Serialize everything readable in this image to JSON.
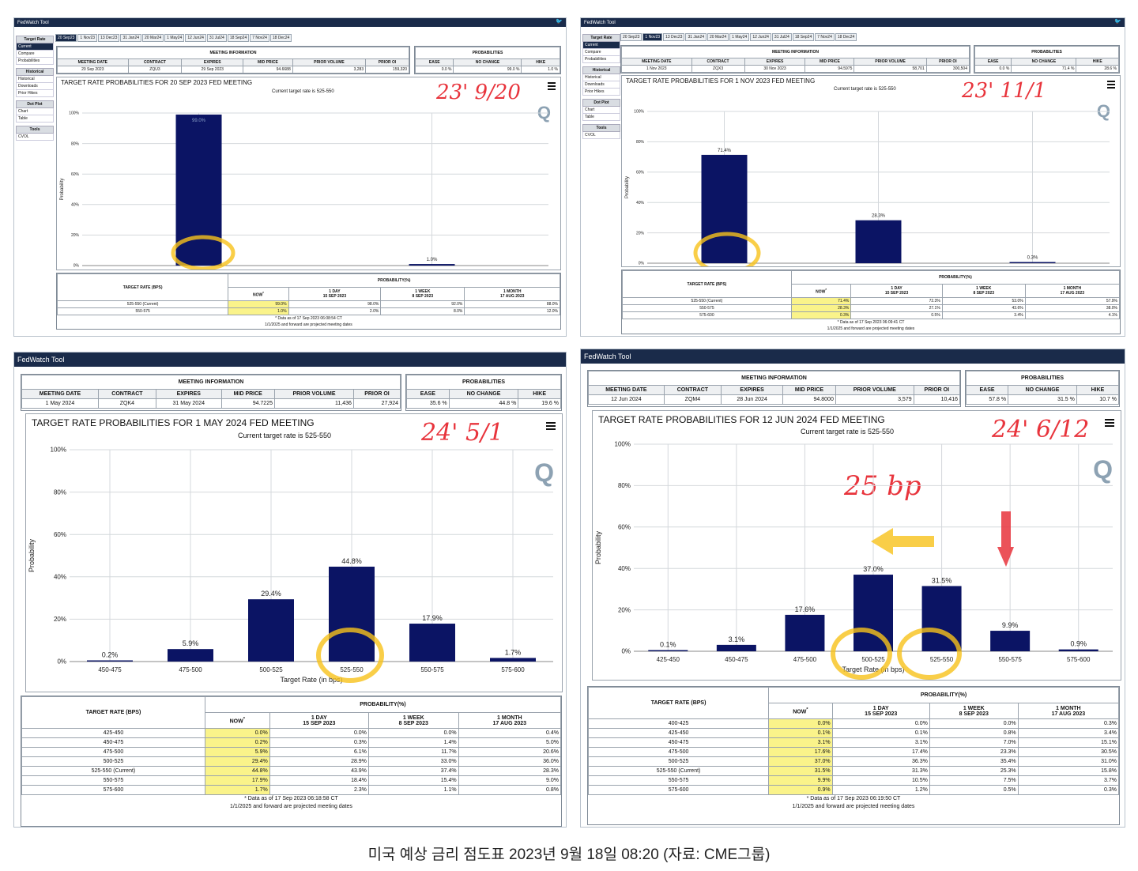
{
  "caption": "미국 예상 금리 점도표 2023년 9월 18일 08:20 (자료: CME그룹)",
  "app_title": "FedWatch Tool",
  "meeting_tabs": [
    "20 Sep23",
    "1 Nov23",
    "13 Dec23",
    "31 Jan24",
    "20 Mar24",
    "1 May24",
    "12 Jun24",
    "31 Jul24",
    "18 Sep24",
    "7 Nov24",
    "18 Dec24"
  ],
  "sidebar": [
    {
      "group": "Target Rate",
      "items": [
        "Current",
        "Compare",
        "Probabilities"
      ]
    },
    {
      "group": "Historical",
      "items": [
        "Historical",
        "Downloads",
        "Prior Hikes"
      ]
    },
    {
      "group": "Dot Plot",
      "items": [
        "Chart",
        "Table"
      ]
    },
    {
      "group": "Tools",
      "items": [
        "CVOL"
      ]
    }
  ],
  "labels": {
    "meeting_information": "MEETING INFORMATION",
    "probabilities": "PROBABILITIES",
    "meeting_date": "MEETING DATE",
    "contract": "CONTRACT",
    "expires": "EXPIRES",
    "mid_price": "MID PRICE",
    "prior_volume": "PRIOR VOLUME",
    "prior_oi": "PRIOR OI",
    "ease": "EASE",
    "no_change": "NO CHANGE",
    "hike": "HIKE",
    "target_rate_bps": "TARGET RATE (BPS)",
    "probability_pct": "PROBABILITY(%)",
    "now": "NOW",
    "now_mark": "*",
    "day_label": "1 DAY",
    "day_date": "15 SEP 2023",
    "week_label": "1 WEEK",
    "week_date": "8 SEP 2023",
    "month_label": "1 MONTH",
    "month_date": "17 AUG 2023",
    "projected": "1/1/2025 and forward are projected meeting dates",
    "y_axis": "Probability",
    "x_axis": "Target Rate (in bps)",
    "q_logo": "Q",
    "current_rate": "Current target rate is 525-550"
  },
  "panels": [
    {
      "id": "p1",
      "active_tab": 0,
      "meeting": {
        "date": "20 Sep 2023",
        "contract": "ZQU3",
        "expires": "29 Sep 2023",
        "mid_price": "94.6688",
        "prior_volume": "3,283",
        "prior_oi": "159,320"
      },
      "probs": {
        "ease": "0.0 %",
        "no_change": "99.0 %",
        "hike": "1.0 %"
      },
      "chart_title": "TARGET RATE PROBABILITIES FOR 20 SEP 2023 FED MEETING",
      "annotation": "23' 9/20",
      "data_as_of": "* Data as of 17 Sep 2023 06:08:54 CT",
      "rows": [
        {
          "rate": "525-550 (Current)",
          "now": "99.0%",
          "day": "98.0%",
          "week": "92.0%",
          "month": "88.0%"
        },
        {
          "rate": "550-575",
          "now": "1.0%",
          "day": "2.0%",
          "week": "8.0%",
          "month": "12.0%"
        }
      ]
    },
    {
      "id": "p2",
      "active_tab": 1,
      "meeting": {
        "date": "1 Nov 2023",
        "contract": "ZQX3",
        "expires": "30 Nov 2023",
        "mid_price": "94.5975",
        "prior_volume": "58,701",
        "prior_oi": "300,504"
      },
      "probs": {
        "ease": "0.0 %",
        "no_change": "71.4 %",
        "hike": "28.6 %"
      },
      "chart_title": "TARGET RATE PROBABILITIES FOR 1 NOV 2023 FED MEETING",
      "annotation": "23' 11/1",
      "data_as_of": "* Data as of 17 Sep 2023 06:09:41 CT",
      "rows": [
        {
          "rate": "525-550 (Current)",
          "now": "71.4%",
          "day": "72.3%",
          "week": "53.0%",
          "month": "57.9%"
        },
        {
          "rate": "550-575",
          "now": "28.3%",
          "day": "27.1%",
          "week": "43.6%",
          "month": "38.0%"
        },
        {
          "rate": "575-600",
          "now": "0.3%",
          "day": "0.5%",
          "week": "3.4%",
          "month": "4.1%"
        }
      ]
    },
    {
      "id": "p3",
      "meeting": {
        "date": "1 May 2024",
        "contract": "ZQK4",
        "expires": "31 May 2024",
        "mid_price": "94.7225",
        "prior_volume": "11,436",
        "prior_oi": "27,924"
      },
      "probs": {
        "ease": "35.6 %",
        "no_change": "44.8 %",
        "hike": "19.6 %"
      },
      "chart_title": "TARGET RATE PROBABILITIES FOR 1 MAY 2024 FED MEETING",
      "annotation": "24' 5/1",
      "data_as_of": "* Data as of 17 Sep 2023 06:18:58 CT",
      "rows": [
        {
          "rate": "425-450",
          "now": "0.0%",
          "day": "0.0%",
          "week": "0.0%",
          "month": "0.4%"
        },
        {
          "rate": "450-475",
          "now": "0.2%",
          "day": "0.3%",
          "week": "1.4%",
          "month": "5.0%"
        },
        {
          "rate": "475-500",
          "now": "5.9%",
          "day": "6.1%",
          "week": "11.7%",
          "month": "20.6%"
        },
        {
          "rate": "500-525",
          "now": "29.4%",
          "day": "28.9%",
          "week": "33.0%",
          "month": "36.0%"
        },
        {
          "rate": "525-550 (Current)",
          "now": "44.8%",
          "day": "43.9%",
          "week": "37.4%",
          "month": "28.3%"
        },
        {
          "rate": "550-575",
          "now": "17.9%",
          "day": "18.4%",
          "week": "15.4%",
          "month": "9.0%"
        },
        {
          "rate": "575-600",
          "now": "1.7%",
          "day": "2.3%",
          "week": "1.1%",
          "month": "0.8%"
        }
      ]
    },
    {
      "id": "p4",
      "meeting": {
        "date": "12 Jun 2024",
        "contract": "ZQM4",
        "expires": "28 Jun 2024",
        "mid_price": "94.8000",
        "prior_volume": "3,579",
        "prior_oi": "10,416"
      },
      "probs": {
        "ease": "57.8 %",
        "no_change": "31.5 %",
        "hike": "10.7 %"
      },
      "chart_title": "TARGET RATE PROBABILITIES FOR 12 JUN 2024 FED MEETING",
      "annotation": "24' 6/12",
      "annotation2": "25 bp",
      "data_as_of": "* Data as of 17 Sep 2023 06:19:50 CT",
      "rows": [
        {
          "rate": "400-425",
          "now": "0.0%",
          "day": "0.0%",
          "week": "0.0%",
          "month": "0.3%"
        },
        {
          "rate": "425-450",
          "now": "0.1%",
          "day": "0.1%",
          "week": "0.8%",
          "month": "3.4%"
        },
        {
          "rate": "450-475",
          "now": "3.1%",
          "day": "3.1%",
          "week": "7.0%",
          "month": "15.1%"
        },
        {
          "rate": "475-500",
          "now": "17.6%",
          "day": "17.4%",
          "week": "23.3%",
          "month": "30.5%"
        },
        {
          "rate": "500-525",
          "now": "37.0%",
          "day": "36.3%",
          "week": "35.4%",
          "month": "31.0%"
        },
        {
          "rate": "525-550 (Current)",
          "now": "31.5%",
          "day": "31.3%",
          "week": "25.3%",
          "month": "15.8%"
        },
        {
          "rate": "550-575",
          "now": "9.9%",
          "day": "10.5%",
          "week": "7.5%",
          "month": "3.7%"
        },
        {
          "rate": "575-600",
          "now": "0.9%",
          "day": "1.2%",
          "week": "0.5%",
          "month": "0.3%"
        }
      ]
    }
  ],
  "chart_data": [
    {
      "type": "bar",
      "title": "TARGET RATE PROBABILITIES FOR 20 SEP 2023 FED MEETING",
      "subtitle": "Current target rate is 525-550",
      "xlabel": "Target Rate (in bps)",
      "ylabel": "Probability",
      "categories": [
        "525-550",
        "550-575"
      ],
      "values": [
        99.0,
        1.0
      ],
      "value_labels": [
        "99.0%",
        "1.0%"
      ],
      "ylim": [
        0,
        100
      ],
      "yticks": [
        "0%",
        "20%",
        "40%",
        "60%",
        "80%",
        "100%"
      ],
      "grid": true,
      "color": "#0b1464"
    },
    {
      "type": "bar",
      "title": "TARGET RATE PROBABILITIES FOR 1 NOV 2023 FED MEETING",
      "subtitle": "Current target rate is 525-550",
      "xlabel": "Target Rate (in bps)",
      "ylabel": "Probability",
      "categories": [
        "525-550",
        "550-575",
        "575-600"
      ],
      "values": [
        71.4,
        28.3,
        0.3
      ],
      "value_labels": [
        "71.4%",
        "28.3%",
        "0.3%"
      ],
      "ylim": [
        0,
        100
      ],
      "yticks": [
        "0%",
        "20%",
        "40%",
        "60%",
        "80%",
        "100%"
      ],
      "grid": true,
      "color": "#0b1464"
    },
    {
      "type": "bar",
      "title": "TARGET RATE PROBABILITIES FOR 1 MAY 2024 FED MEETING",
      "subtitle": "Current target rate is 525-550",
      "xlabel": "Target Rate (in bps)",
      "ylabel": "Probability",
      "categories": [
        "450-475",
        "475-500",
        "500-525",
        "525-550",
        "550-575",
        "575-600"
      ],
      "values": [
        0.2,
        5.9,
        29.4,
        44.8,
        17.9,
        1.7
      ],
      "value_labels": [
        "0.2%",
        "5.9%",
        "29.4%",
        "44.8%",
        "17.9%",
        "1.7%"
      ],
      "ylim": [
        0,
        100
      ],
      "yticks": [
        "0%",
        "20%",
        "40%",
        "60%",
        "80%",
        "100%"
      ],
      "grid": true,
      "color": "#0b1464"
    },
    {
      "type": "bar",
      "title": "TARGET RATE PROBABILITIES FOR 12 JUN 2024 FED MEETING",
      "subtitle": "Current target rate is 525-550",
      "xlabel": "Target Rate (in bps)",
      "ylabel": "Probability",
      "categories": [
        "425-450",
        "450-475",
        "475-500",
        "500-525",
        "525-550",
        "550-575",
        "575-600"
      ],
      "values": [
        0.1,
        3.1,
        17.6,
        37.0,
        31.5,
        9.9,
        0.9
      ],
      "value_labels": [
        "0.1%",
        "3.1%",
        "17.6%",
        "37.0%",
        "31.5%",
        "9.9%",
        "0.9%"
      ],
      "ylim": [
        0,
        100
      ],
      "yticks": [
        "0%",
        "20%",
        "40%",
        "60%",
        "80%",
        "100%"
      ],
      "grid": true,
      "color": "#0b1464"
    }
  ],
  "colors": {
    "bar": "#0b1464",
    "titlebar": "#1a2b4a",
    "highlight": "#faf38a",
    "annotation": "#e8343c",
    "circle": "#f7c21a"
  }
}
